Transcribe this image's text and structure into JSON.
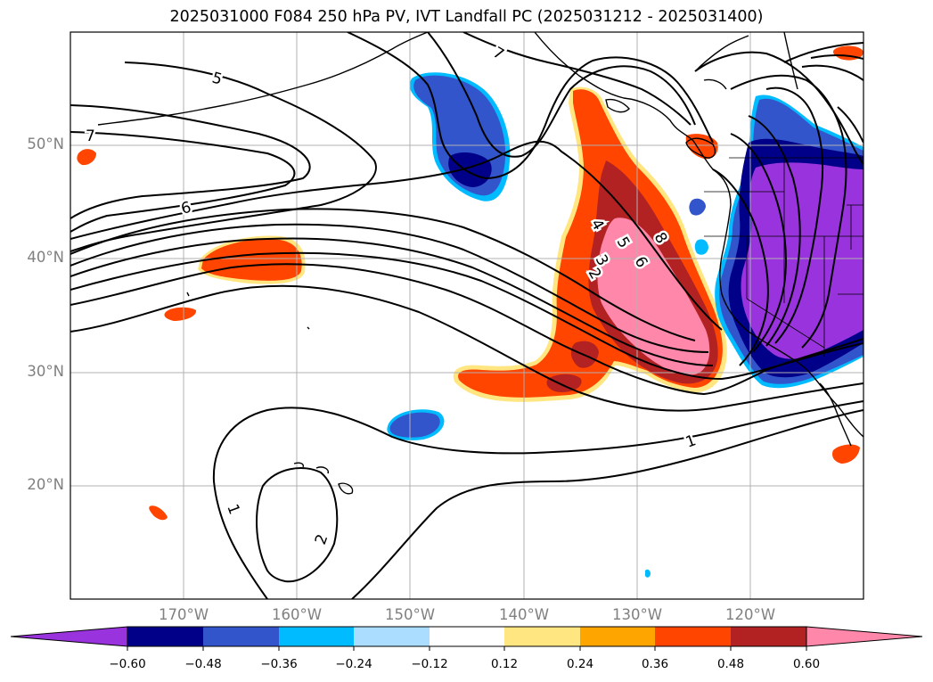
{
  "title": "2025031000 F084 250 hPa PV, IVT Landfall PC (2025031212 - 2025031400)",
  "colors": {
    "land_line": "#000000",
    "grid": "#b0b0b0",
    "contour": "#000000",
    "label_gray": "#808080"
  },
  "axes": {
    "lon_labels": [
      "170°W",
      "160°W",
      "150°W",
      "140°W",
      "130°W",
      "120°W"
    ],
    "lat_labels": [
      "50°N",
      "40°N",
      "30°N",
      "20°N"
    ]
  },
  "contour_labels": [
    "5",
    "7",
    "7",
    "6",
    "4",
    "5",
    "3",
    "6",
    "2",
    "8",
    "1",
    "1",
    "2"
  ],
  "colorbar": {
    "ticks": [
      "−0.60",
      "−0.48",
      "−0.36",
      "−0.24",
      "−0.12",
      "0.12",
      "0.24",
      "0.36",
      "0.48",
      "0.60"
    ],
    "colors": [
      "#9933dd",
      "#000088",
      "#3355cc",
      "#00bbff",
      "#aaddff",
      "#ffffff",
      "#ffe680",
      "#ffa500",
      "#ff4500",
      "#b22222",
      "#ff88aa"
    ]
  }
}
